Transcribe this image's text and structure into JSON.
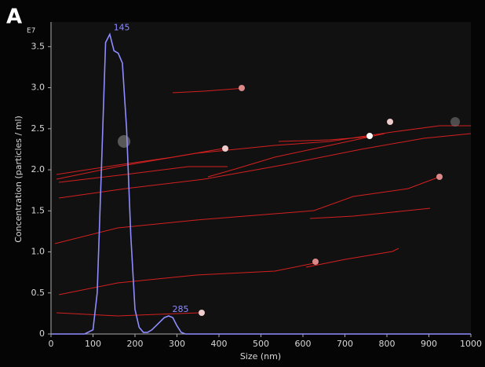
{
  "chart_data": {
    "type": "line",
    "panel_label": "A",
    "y_multiplier": "E7",
    "xlabel": "Size (nm)",
    "ylabel": "Concentration (particles / ml)",
    "x": [
      0,
      50,
      80,
      100,
      110,
      120,
      130,
      140,
      150,
      160,
      170,
      180,
      190,
      200,
      210,
      220,
      230,
      240,
      250,
      260,
      270,
      280,
      290,
      300,
      310,
      320,
      400,
      500,
      600,
      700,
      800,
      900,
      1000
    ],
    "series": [
      {
        "name": "Concentration",
        "color": "#8f8cff",
        "values": [
          0,
          0,
          0,
          0.05,
          0.5,
          2.0,
          3.55,
          3.65,
          3.45,
          3.42,
          3.3,
          2.5,
          1.2,
          0.3,
          0.08,
          0.02,
          0.02,
          0.05,
          0.1,
          0.15,
          0.2,
          0.22,
          0.2,
          0.1,
          0.02,
          0,
          0,
          0,
          0,
          0,
          0,
          0,
          0
        ]
      }
    ],
    "peak_labels": [
      145,
      285
    ],
    "xlim": [
      0,
      1000
    ],
    "xticks": [
      0,
      100,
      200,
      300,
      400,
      500,
      600,
      700,
      800,
      900,
      1000
    ],
    "ylim": [
      0,
      3.8
    ],
    "yticks": [
      0,
      0.5,
      {
        "value": 1,
        "label": "1.0"
      },
      1.5,
      {
        "value": 2,
        "label": "2.0"
      },
      2.5,
      {
        "value": 3,
        "label": "3.0"
      },
      3.5
    ]
  }
}
